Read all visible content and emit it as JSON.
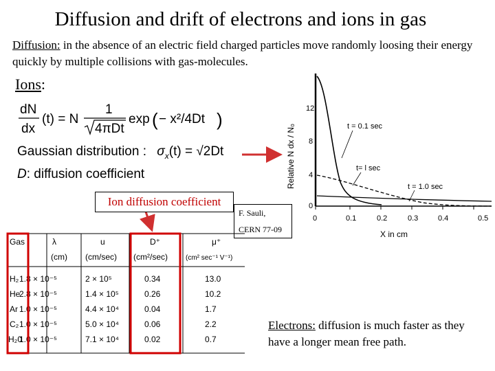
{
  "slide": {
    "title": "Diffusion and drift of electrons and ions in gas",
    "diffusion_label": "Diffusion:",
    "diffusion_text": " in the absence of an electric field charged particles move randomly loosing their energy quickly by multiple collisions with gas-molecules.",
    "ions_label": "Ions",
    "ions_colon": ":",
    "gaussian_label": "Gaussian distribution :",
    "diffusion_coeff_label": ": diffusion coefficient",
    "ion_box_label": "Ion diffusion coefficient",
    "citation_line1": "F. Sauli,",
    "citation_line2": "CERN 77-09",
    "electrons_label": "Electrons:",
    "electrons_text": " diffusion is much faster as they have a longer mean free path."
  },
  "equation": {
    "lhs_num": "dN",
    "lhs_den": "dx",
    "lhs_arg": "(t) = N",
    "frac_num": "1",
    "frac_den": "4πDt",
    "exp": "exp",
    "exp_arg": "− x²/4Dt",
    "sigma": "σ",
    "sigma_sub": "x",
    "sigma_rhs": "(t) = √2Dt",
    "D": "D"
  },
  "graph": {
    "ylabel": "Relative  N dx / N₀",
    "xlabel": "X  in  cm",
    "yticks": [
      "12",
      "8",
      "4",
      "0"
    ],
    "xticks": [
      "0",
      "0.1",
      "0.2",
      "0.3",
      "0.4",
      "0.5"
    ],
    "curve_labels": [
      "t = 0.1 sec",
      "t= l sec",
      "t = 1.0 sec"
    ]
  },
  "table": {
    "headers": [
      "Gas",
      "λ",
      "u",
      "D⁺",
      "μ⁺"
    ],
    "units": [
      "",
      "(cm)",
      "(cm/sec)",
      "(cm²/sec)",
      "(cm² sec⁻¹ V⁻¹)"
    ],
    "rows": [
      [
        "H₂",
        "1.8 × 10⁻⁵",
        "2   × 10⁵",
        "0.34",
        "13.0"
      ],
      [
        "He",
        "2.8 × 10⁻⁵",
        "1.4 × 10⁵",
        "0.26",
        "10.2"
      ],
      [
        "Ar",
        "1.0 × 10⁻⁵",
        "4.4 × 10⁴",
        "0.04",
        "1.7"
      ],
      [
        "C₂",
        "1.0 × 10⁻⁵",
        "5.0 × 10⁴",
        "0.06",
        "2.2"
      ],
      [
        "H₂0",
        "1.0 × 10⁻⁵",
        "7.1 × 10⁴",
        "0.02",
        "0.7"
      ]
    ]
  },
  "colors": {
    "highlight": "#d00000",
    "arrow": "#d03030"
  }
}
